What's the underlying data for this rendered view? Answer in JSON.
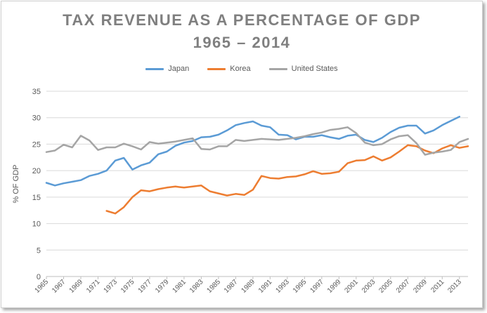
{
  "chart_data": {
    "type": "line",
    "title_line1": "TAX REVENUE AS A PERCENTAGE OF GDP",
    "title_line2": "1965 – 2014",
    "xlabel": "",
    "ylabel": "% OF GDP",
    "ylim": [
      0,
      35
    ],
    "yticks": [
      0,
      5,
      10,
      15,
      20,
      25,
      30,
      35
    ],
    "xlim": [
      1965,
      2014
    ],
    "xticks": [
      1965,
      1967,
      1969,
      1971,
      1973,
      1975,
      1977,
      1979,
      1981,
      1983,
      1985,
      1987,
      1989,
      1991,
      1993,
      1995,
      1997,
      1999,
      2001,
      2003,
      2005,
      2007,
      2009,
      2011,
      2013
    ],
    "grid": true,
    "legend_position": "top-center",
    "series": [
      {
        "name": "Japan",
        "color": "#5b9bd5",
        "x": [
          1965,
          1966,
          1967,
          1968,
          1969,
          1970,
          1971,
          1972,
          1973,
          1974,
          1975,
          1976,
          1977,
          1978,
          1979,
          1980,
          1981,
          1982,
          1983,
          1984,
          1985,
          1986,
          1987,
          1988,
          1989,
          1990,
          1991,
          1992,
          1993,
          1994,
          1995,
          1996,
          1997,
          1998,
          1999,
          2000,
          2001,
          2002,
          2003,
          2004,
          2005,
          2006,
          2007,
          2008,
          2009,
          2010,
          2011,
          2012,
          2013
        ],
        "values": [
          17.7,
          17.2,
          17.6,
          17.9,
          18.2,
          19.0,
          19.4,
          20.0,
          21.9,
          22.4,
          20.2,
          21.0,
          21.5,
          23.1,
          23.6,
          24.7,
          25.3,
          25.6,
          26.3,
          26.4,
          26.8,
          27.6,
          28.6,
          29.0,
          29.3,
          28.5,
          28.2,
          26.8,
          26.7,
          25.9,
          26.4,
          26.4,
          26.7,
          26.3,
          26.0,
          26.6,
          26.8,
          25.8,
          25.4,
          26.2,
          27.3,
          28.1,
          28.5,
          28.5,
          27.0,
          27.6,
          28.6,
          29.4,
          30.2
        ]
      },
      {
        "name": "Korea",
        "color": "#ed7d31",
        "x": [
          1972,
          1973,
          1974,
          1975,
          1976,
          1977,
          1978,
          1979,
          1980,
          1981,
          1982,
          1983,
          1984,
          1985,
          1986,
          1987,
          1988,
          1989,
          1990,
          1991,
          1992,
          1993,
          1994,
          1995,
          1996,
          1997,
          1998,
          1999,
          2000,
          2001,
          2002,
          2003,
          2004,
          2005,
          2006,
          2007,
          2008,
          2009,
          2010,
          2011,
          2012,
          2013,
          2014
        ],
        "values": [
          12.4,
          11.9,
          13.1,
          15.0,
          16.3,
          16.1,
          16.5,
          16.8,
          17.0,
          16.8,
          17.0,
          17.2,
          16.1,
          15.7,
          15.3,
          15.6,
          15.4,
          16.4,
          19.0,
          18.6,
          18.5,
          18.8,
          18.9,
          19.3,
          19.9,
          19.4,
          19.5,
          19.8,
          21.4,
          21.9,
          22.0,
          22.7,
          21.9,
          22.5,
          23.6,
          24.8,
          24.6,
          23.8,
          23.3,
          24.2,
          24.8,
          24.3,
          24.6
        ]
      },
      {
        "name": "United States",
        "color": "#a5a5a5",
        "x": [
          1965,
          1966,
          1967,
          1968,
          1969,
          1970,
          1971,
          1972,
          1973,
          1974,
          1975,
          1976,
          1977,
          1978,
          1979,
          1980,
          1981,
          1982,
          1983,
          1984,
          1985,
          1986,
          1987,
          1988,
          1989,
          1990,
          1991,
          1992,
          1993,
          1994,
          1995,
          1996,
          1997,
          1998,
          1999,
          2000,
          2001,
          2002,
          2003,
          2004,
          2005,
          2006,
          2007,
          2008,
          2009,
          2010,
          2011,
          2012,
          2013,
          2014
        ],
        "values": [
          23.5,
          23.8,
          24.9,
          24.4,
          26.6,
          25.7,
          23.9,
          24.4,
          24.4,
          25.1,
          24.6,
          24.0,
          25.4,
          25.1,
          25.3,
          25.5,
          25.8,
          26.1,
          24.1,
          24.0,
          24.6,
          24.6,
          25.8,
          25.6,
          25.8,
          26.0,
          25.9,
          25.8,
          26.0,
          26.2,
          26.5,
          26.9,
          27.2,
          27.7,
          27.9,
          28.2,
          27.1,
          25.3,
          24.8,
          25.0,
          25.9,
          26.5,
          26.7,
          25.2,
          23.0,
          23.4,
          23.6,
          23.9,
          25.4,
          26.0
        ]
      }
    ]
  }
}
